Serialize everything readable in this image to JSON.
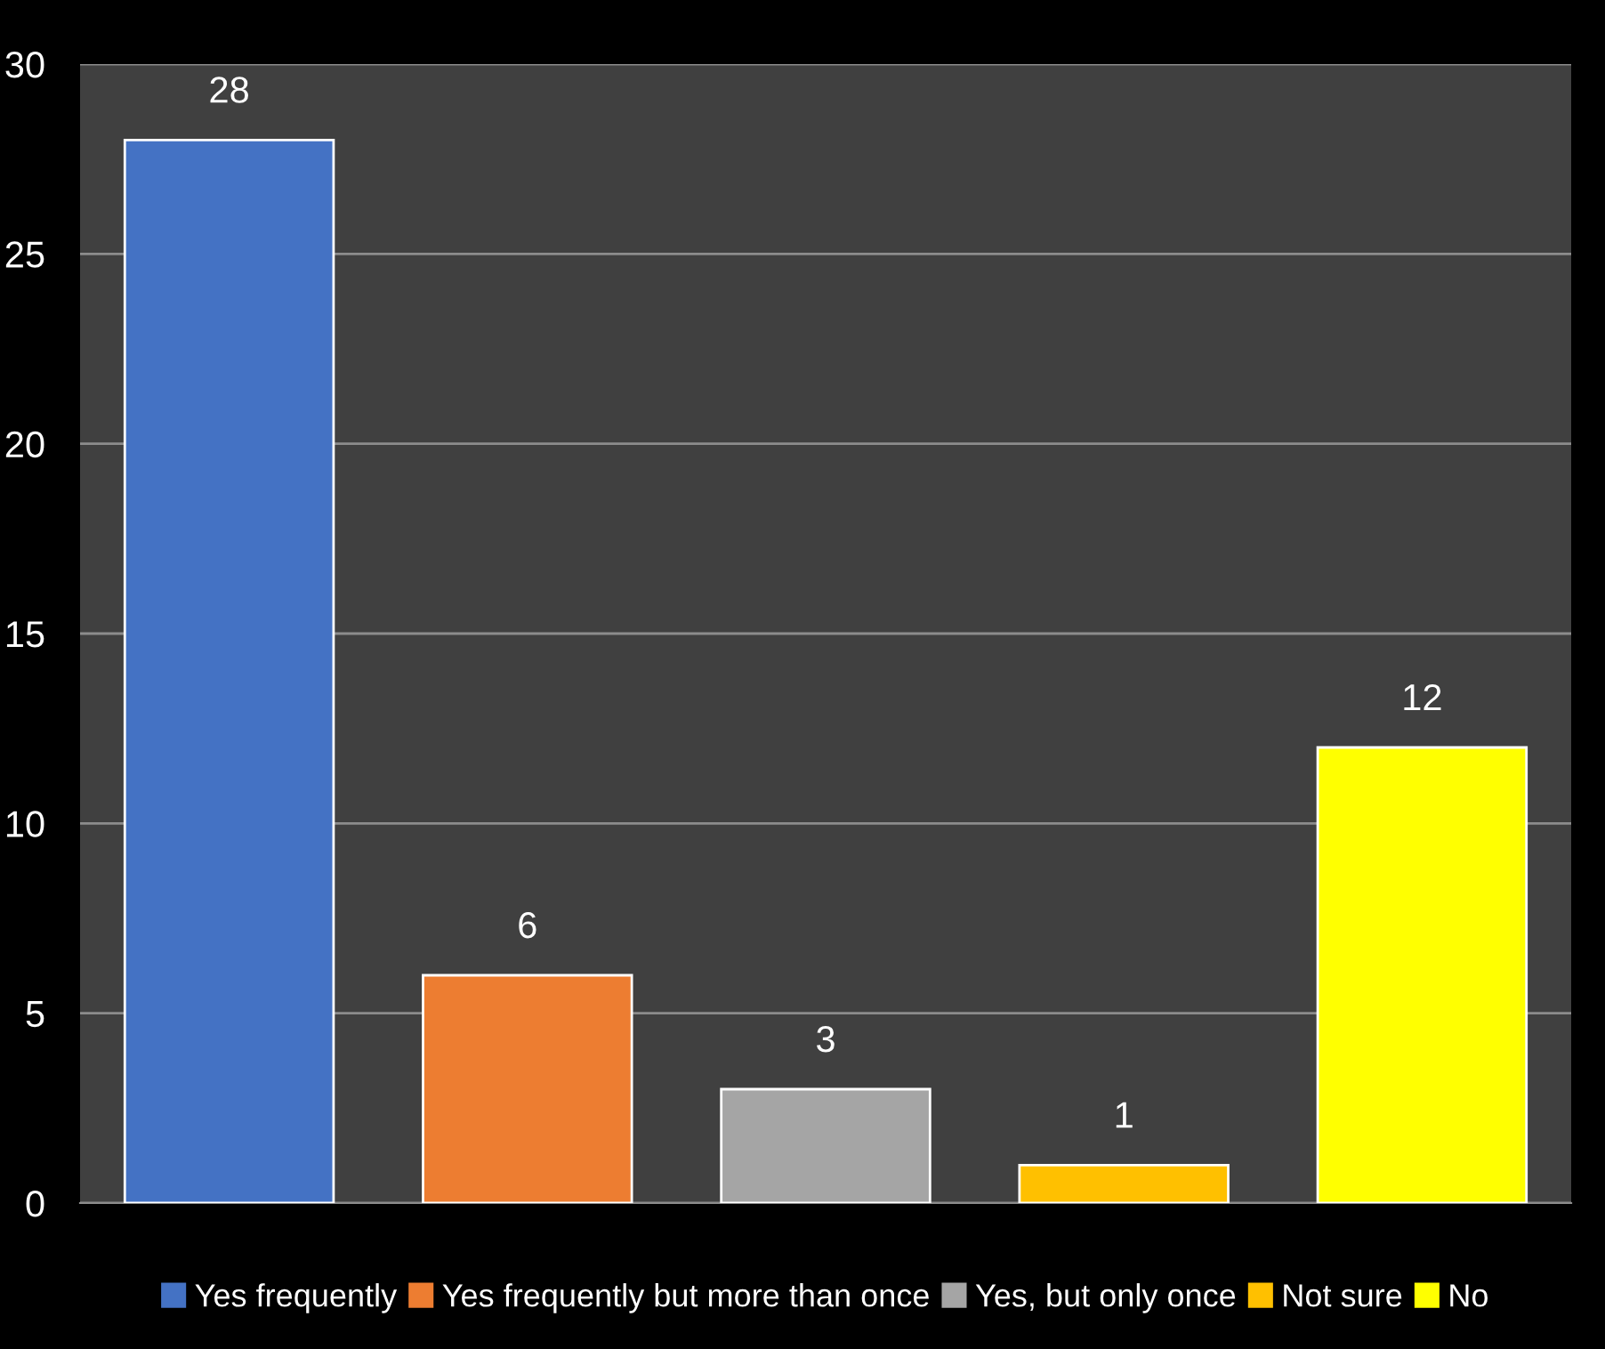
{
  "chart_data": {
    "type": "bar",
    "categories": [
      null,
      null,
      null,
      null,
      null
    ],
    "series": [
      {
        "name": "Yes frequently",
        "color": "#4472c4",
        "values": [
          28,
          null,
          null,
          null,
          null
        ]
      },
      {
        "name": "Yes frequently but more than once",
        "color": "#ed7d31",
        "values": [
          null,
          6,
          null,
          null,
          null
        ]
      },
      {
        "name": "Yes, but only once",
        "color": "#a5a5a5",
        "values": [
          null,
          null,
          3,
          null,
          null
        ]
      },
      {
        "name": "Not sure",
        "color": "#ffc000",
        "values": [
          null,
          null,
          null,
          1,
          null
        ]
      },
      {
        "name": "No",
        "color": "#ffff00",
        "values": [
          null,
          null,
          null,
          null,
          12
        ]
      }
    ],
    "ylim": [
      0,
      30
    ],
    "yticks": [
      0,
      5,
      10,
      15,
      20,
      25,
      30
    ],
    "grid": "y",
    "legend": "bottom",
    "data_labels": true
  }
}
